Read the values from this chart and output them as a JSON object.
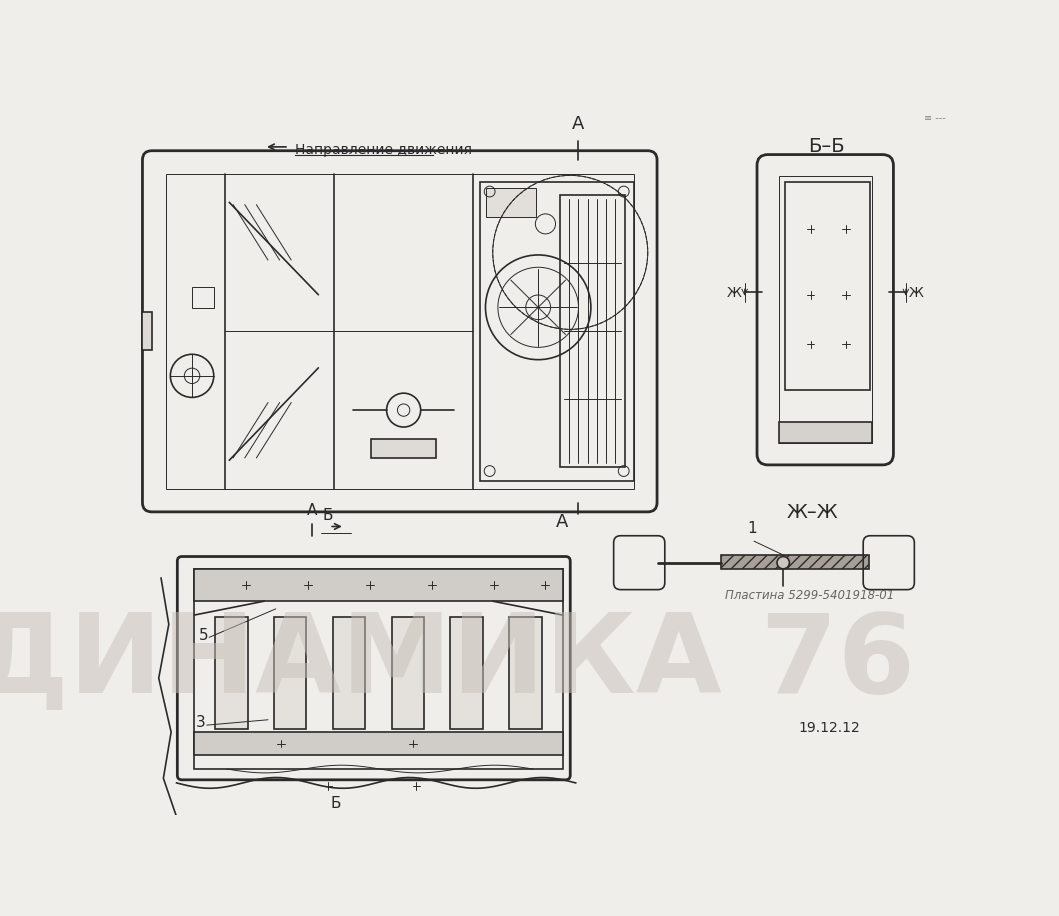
{
  "background_color": "#f0eeeb",
  "line_color": "#2a2a2a",
  "watermark_text": "ДИНАМИКА 76",
  "watermark_color": "#c8c0b8",
  "watermark_alpha": 0.5,
  "label_BB_text": "Б–Б",
  "label_ZhZh_text": "Ж–Ж",
  "label_direction_text": "Направление движения",
  "label_date": "19.12.12",
  "label_plate": "Пластина 5299-5401918-01"
}
